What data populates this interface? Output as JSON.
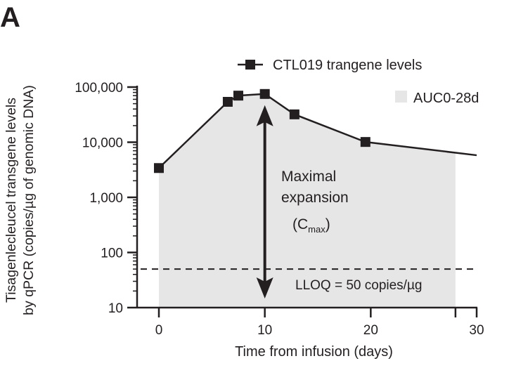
{
  "panel_label": "A",
  "chart_data": {
    "type": "line",
    "title": "",
    "xlabel": "Time from infusion (days)",
    "ylabel": [
      "Tisagenlecleucel transgene levels",
      "by qPCR (copies/µg of genomic DNA)"
    ],
    "yscale": "log",
    "xlim": [
      0,
      30
    ],
    "ylim": [
      10,
      100000
    ],
    "xticks": [
      0,
      10,
      20,
      30
    ],
    "xtick_labels": [
      "0",
      "10",
      "20",
      "30"
    ],
    "yticks": [
      10,
      100,
      1000,
      10000,
      100000
    ],
    "ytick_labels": [
      "10",
      "100",
      "1,000",
      "10,000",
      "100,000"
    ],
    "series": [
      {
        "name": "CTL019 trangene levels",
        "x": [
          0,
          6.5,
          7.5,
          10,
          12.8,
          19.5
        ],
        "y": [
          3400,
          54000,
          70000,
          75000,
          32000,
          10100
        ],
        "line_end": {
          "x": 30,
          "y": 5800
        }
      }
    ],
    "auc": {
      "name": "AUC0-28d",
      "x_range": [
        0,
        28
      ],
      "color": "#e6e6e6"
    },
    "lloq": {
      "value": 50,
      "label": "LLOQ = 50 copies/µg"
    },
    "annotation": {
      "lines": [
        "Maximal",
        "expansion"
      ],
      "cmax_main": "C",
      "cmax_sub": "max",
      "x": 10,
      "y_range": [
        75000,
        50
      ]
    },
    "legend_position": "top-right",
    "grid": false
  }
}
